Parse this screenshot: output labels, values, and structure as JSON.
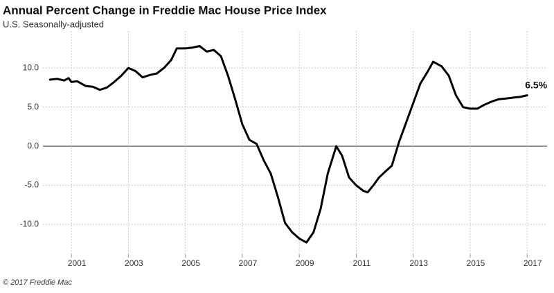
{
  "chart_data": {
    "type": "line",
    "title": "Annual Percent Change in Freddie Mac House Price Index",
    "subtitle": "U.S. Seasonally-adjusted",
    "source": "© 2017 Freddie Mac",
    "x": [
      2000.25,
      2000.5,
      2000.75,
      2000.9,
      2001.0,
      2001.2,
      2001.5,
      2001.75,
      2002.0,
      2002.25,
      2002.5,
      2002.75,
      2003.0,
      2003.25,
      2003.5,
      2003.75,
      2004.0,
      2004.25,
      2004.5,
      2004.7,
      2005.0,
      2005.25,
      2005.5,
      2005.75,
      2006.0,
      2006.25,
      2006.5,
      2006.75,
      2007.0,
      2007.25,
      2007.5,
      2007.75,
      2008.0,
      2008.25,
      2008.5,
      2008.75,
      2009.0,
      2009.25,
      2009.5,
      2009.75,
      2010.0,
      2010.3,
      2010.5,
      2010.75,
      2011.0,
      2011.25,
      2011.4,
      2011.6,
      2011.8,
      2012.0,
      2012.25,
      2012.5,
      2012.75,
      2013.0,
      2013.25,
      2013.5,
      2013.7,
      2014.0,
      2014.25,
      2014.5,
      2014.75,
      2015.0,
      2015.25,
      2015.5,
      2015.75,
      2016.0,
      2016.25,
      2016.5,
      2016.75,
      2017.0
    ],
    "values": [
      8.5,
      8.6,
      8.4,
      8.7,
      8.2,
      8.3,
      7.7,
      7.6,
      7.2,
      7.5,
      8.2,
      9.0,
      10.0,
      9.6,
      8.8,
      9.1,
      9.3,
      10.0,
      11.0,
      12.5,
      12.5,
      12.6,
      12.8,
      12.1,
      12.3,
      11.5,
      9.0,
      6.0,
      2.8,
      0.8,
      0.3,
      -1.8,
      -3.5,
      -6.5,
      -9.8,
      -11.0,
      -11.8,
      -12.3,
      -11.0,
      -8.0,
      -3.5,
      0.0,
      -1.2,
      -4.0,
      -5.0,
      -5.7,
      -5.9,
      -5.0,
      -4.0,
      -3.3,
      -2.5,
      0.5,
      3.0,
      5.5,
      8.0,
      9.5,
      10.8,
      10.2,
      9.0,
      6.5,
      5.0,
      4.8,
      4.8,
      5.3,
      5.7,
      6.0,
      6.1,
      6.2,
      6.3,
      6.5
    ],
    "color": "#000000",
    "annotations": [
      {
        "x": 2017.0,
        "value": 6.5,
        "label": "6.5%"
      }
    ],
    "xlim": [
      2000,
      2017.7
    ],
    "xticks": [
      2001,
      2003,
      2005,
      2007,
      2009,
      2011,
      2013,
      2015,
      2017
    ],
    "ylim": [
      -13.8,
      14.7
    ],
    "yticks": [
      {
        "value": -10,
        "label": "-10.0"
      },
      {
        "value": -5,
        "label": "-5.0"
      },
      {
        "value": 0,
        "label": "0.0"
      },
      {
        "value": 5,
        "label": "5.0"
      },
      {
        "value": 10,
        "label": "10.0"
      }
    ],
    "grid": true
  }
}
